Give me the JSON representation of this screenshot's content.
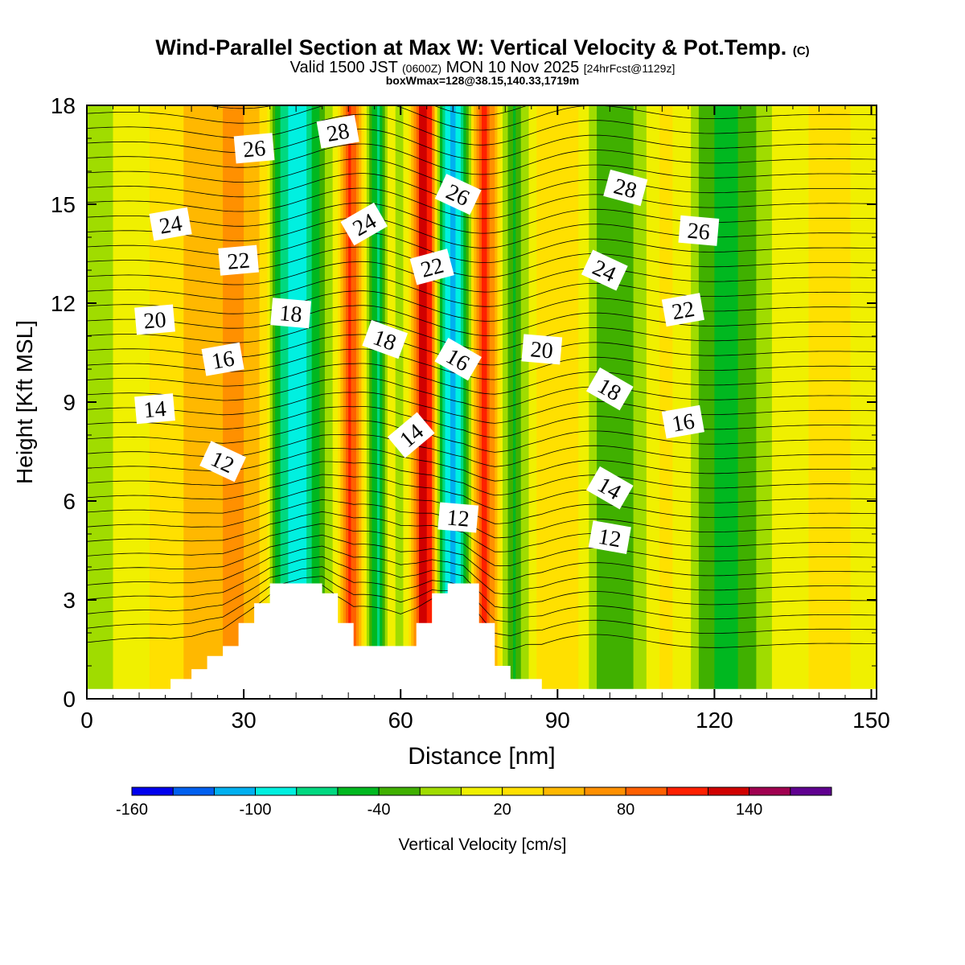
{
  "title": {
    "main": "Wind-Parallel Section at Max W: Vertical Velocity & Pot.Temp.",
    "copyright": "(C)",
    "valid_prefix": "Valid 1500 JST",
    "valid_zulu": "(0600Z)",
    "valid_date": "MON 10 Nov 2025",
    "forecast": "[24hrFcst@1129z]",
    "box_info": "boxWmax=128@38.15,140.33,1719m"
  },
  "chart_data": {
    "type": "heatmap",
    "title": "Wind-Parallel Section at Max W: Vertical Velocity & Pot.Temp.",
    "xlabel": "Distance [nm]",
    "ylabel": "Height [Kft MSL]",
    "xlim": [
      0,
      151
    ],
    "ylim": [
      0,
      18
    ],
    "x_ticks": [
      0,
      30,
      60,
      90,
      120,
      150
    ],
    "y_ticks": [
      0,
      3,
      6,
      9,
      12,
      15,
      18
    ],
    "colorbar": {
      "label": "Vertical Velocity [cm/s]",
      "tick_values": [
        -160,
        -100,
        -40,
        20,
        80,
        140
      ],
      "tick_labels": [
        "-160",
        "-100",
        "-40",
        "20",
        "80",
        "140"
      ],
      "bins": [
        -160,
        -140,
        -120,
        -100,
        -80,
        -60,
        -40,
        -20,
        0,
        20,
        40,
        60,
        80,
        100,
        120,
        140,
        160
      ],
      "colors": [
        "#0000ee",
        "#0060f0",
        "#00b0f0",
        "#00f0e0",
        "#00d880",
        "#00b820",
        "#40b000",
        "#a0dc00",
        "#f0f000",
        "#ffe000",
        "#ffb800",
        "#ff9000",
        "#ff6000",
        "#ff2000",
        "#d00000",
        "#a00050",
        "#600090"
      ]
    },
    "vertical_velocity_profile": {
      "x": [
        0,
        4,
        8,
        12,
        16,
        20,
        24,
        28,
        32,
        34,
        36,
        38,
        40,
        42,
        44,
        46,
        48,
        50,
        52,
        54,
        56,
        58,
        60,
        62,
        64,
        66,
        68,
        70,
        72,
        74,
        76,
        78,
        80,
        82,
        84,
        86,
        88,
        90,
        94,
        98,
        102,
        106,
        110,
        114,
        118,
        122,
        126,
        130,
        134,
        138,
        142,
        146,
        151
      ],
      "w": [
        -15,
        -5,
        15,
        20,
        30,
        45,
        55,
        65,
        55,
        30,
        -40,
        -75,
        -95,
        -80,
        -45,
        -15,
        20,
        110,
        70,
        -30,
        -70,
        10,
        -15,
        30,
        135,
        95,
        -70,
        -110,
        -70,
        40,
        120,
        55,
        -15,
        -45,
        -5,
        20,
        30,
        35,
        20,
        -25,
        -40,
        -10,
        25,
        15,
        -30,
        -50,
        -35,
        -5,
        15,
        20,
        25,
        20,
        10
      ]
    },
    "terrain": {
      "x": [
        0,
        16,
        20,
        23,
        26,
        29,
        32,
        35,
        38,
        41,
        45,
        48,
        51,
        54,
        57,
        60,
        63,
        66,
        69,
        72,
        75,
        78,
        81,
        84,
        87,
        89,
        151
      ],
      "height": [
        0.3,
        0.6,
        0.9,
        1.3,
        1.6,
        2.3,
        2.9,
        3.5,
        3.5,
        3.5,
        3.2,
        2.3,
        1.6,
        1.6,
        1.6,
        1.6,
        2.3,
        3.2,
        3.5,
        3.5,
        2.3,
        1.0,
        0.6,
        0.6,
        0.3,
        0.3,
        0.3
      ]
    },
    "potential_temperature_labels": [
      {
        "value": "26",
        "x": 32,
        "y": 16.7,
        "angle": -5
      },
      {
        "value": "28",
        "x": 48,
        "y": 17.2,
        "angle": -10
      },
      {
        "value": "24",
        "x": 16,
        "y": 14.4,
        "angle": -10
      },
      {
        "value": "24",
        "x": 53,
        "y": 14.4,
        "angle": -30
      },
      {
        "value": "26",
        "x": 71,
        "y": 15.3,
        "angle": 25
      },
      {
        "value": "28",
        "x": 103,
        "y": 15.5,
        "angle": 15
      },
      {
        "value": "22",
        "x": 29,
        "y": 13.3,
        "angle": -5
      },
      {
        "value": "22",
        "x": 66,
        "y": 13.1,
        "angle": -15
      },
      {
        "value": "24",
        "x": 99,
        "y": 13.0,
        "angle": 25
      },
      {
        "value": "26",
        "x": 117,
        "y": 14.2,
        "angle": 5
      },
      {
        "value": "20",
        "x": 13,
        "y": 11.5,
        "angle": -5
      },
      {
        "value": "18",
        "x": 39,
        "y": 11.7,
        "angle": 5
      },
      {
        "value": "18",
        "x": 57,
        "y": 10.9,
        "angle": 20
      },
      {
        "value": "16",
        "x": 71,
        "y": 10.3,
        "angle": 30
      },
      {
        "value": "20",
        "x": 87,
        "y": 10.6,
        "angle": 5
      },
      {
        "value": "22",
        "x": 114,
        "y": 11.8,
        "angle": -10
      },
      {
        "value": "16",
        "x": 26,
        "y": 10.3,
        "angle": -10
      },
      {
        "value": "18",
        "x": 100,
        "y": 9.4,
        "angle": 30
      },
      {
        "value": "14",
        "x": 13,
        "y": 8.8,
        "angle": -5
      },
      {
        "value": "16",
        "x": 114,
        "y": 8.4,
        "angle": -10
      },
      {
        "value": "14",
        "x": 62,
        "y": 8.0,
        "angle": -40
      },
      {
        "value": "12",
        "x": 26,
        "y": 7.2,
        "angle": 25
      },
      {
        "value": "14",
        "x": 100,
        "y": 6.4,
        "angle": 30
      },
      {
        "value": "12",
        "x": 71,
        "y": 5.5,
        "angle": 5
      },
      {
        "value": "12",
        "x": 100,
        "y": 4.9,
        "angle": 10
      }
    ]
  }
}
